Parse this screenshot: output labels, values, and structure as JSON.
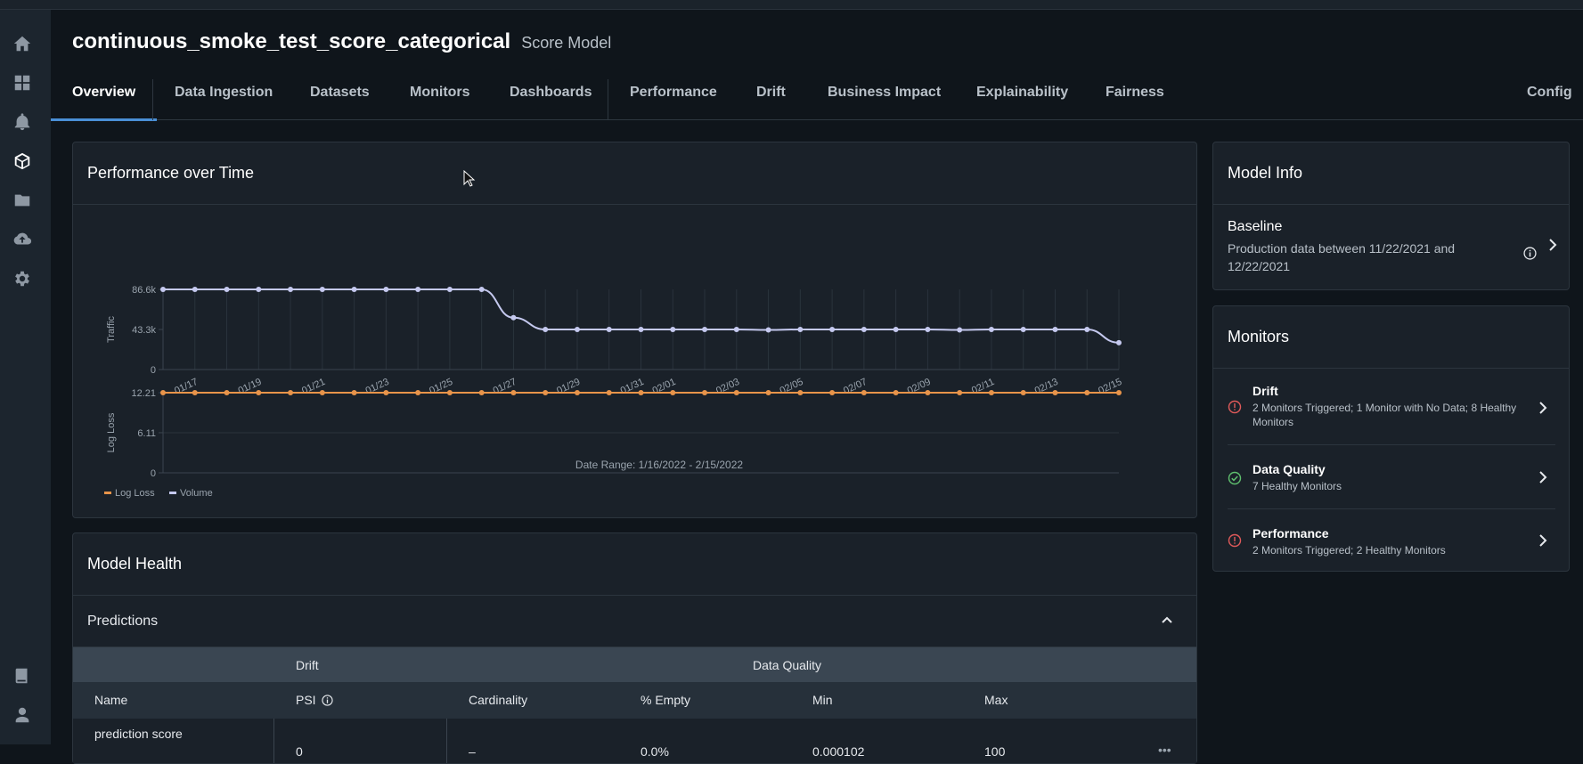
{
  "app": {
    "model_name": "continuous_smoke_test_score_categorical",
    "model_type": "Score Model"
  },
  "tabs": [
    {
      "label": "Overview",
      "active": true
    },
    {
      "label": "Data Ingestion"
    },
    {
      "label": "Datasets"
    },
    {
      "label": "Monitors"
    },
    {
      "label": "Dashboards"
    },
    {
      "label": "Performance"
    },
    {
      "label": "Drift"
    },
    {
      "label": "Business Impact"
    },
    {
      "label": "Explainability"
    },
    {
      "label": "Fairness"
    },
    {
      "label": "Config"
    }
  ],
  "sidebar": {
    "items": [
      "home-icon",
      "dashboard-grid-icon",
      "bell-icon",
      "cube-icon",
      "folder-icon",
      "cloud-upload-icon",
      "gear-icon",
      "book-icon",
      "user-icon"
    ]
  },
  "perf_panel": {
    "title": "Performance over Time",
    "date_range": "Date Range: 1/16/2022 - 2/15/2022",
    "legend": [
      {
        "label": "Log Loss",
        "color": "#e8944a"
      },
      {
        "label": "Volume",
        "color": "#c5c9ef"
      }
    ]
  },
  "chart_data": [
    {
      "type": "line",
      "ylabel": "Traffic",
      "yticks": [
        "0",
        "43.3k",
        "86.6k"
      ],
      "ylim": [
        0,
        86600
      ],
      "x_tick_labels": [
        "01/17",
        "01/19",
        "01/21",
        "01/23",
        "01/25",
        "01/27",
        "01/29",
        "01/31",
        "02/01",
        "02/03",
        "02/05",
        "02/07",
        "02/09",
        "02/11",
        "02/13",
        "02/15"
      ],
      "series": [
        {
          "color": "#c5c9ef",
          "values": [
            86600,
            86600,
            86600,
            86600,
            86600,
            86600,
            86600,
            86600,
            86600,
            86600,
            86600,
            56000,
            43300,
            43300,
            43300,
            43300,
            43300,
            43300,
            43300,
            42800,
            43300,
            43300,
            43300,
            43300,
            43300,
            42800,
            43300,
            43300,
            43300,
            43300,
            29000
          ]
        }
      ]
    },
    {
      "type": "line",
      "ylabel": "Log Loss",
      "yticks": [
        "0",
        "6.11",
        "12.21"
      ],
      "ylim": [
        0,
        12.21
      ],
      "series": [
        {
          "color": "#e8944a",
          "values": [
            12.21,
            12.21,
            12.21,
            12.21,
            12.21,
            12.21,
            12.21,
            12.21,
            12.21,
            12.21,
            12.21,
            12.21,
            12.21,
            12.21,
            12.21,
            12.21,
            12.21,
            12.21,
            12.21,
            12.21,
            12.21,
            12.21,
            12.21,
            12.21,
            12.21,
            12.21,
            12.21,
            12.21,
            12.21,
            12.21,
            12.21
          ]
        }
      ]
    }
  ],
  "health_panel": {
    "title": "Model Health",
    "section": "Predictions",
    "groups": {
      "drift": "Drift",
      "quality": "Data Quality"
    },
    "columns": [
      "Name",
      "PSI",
      "Cardinality",
      "% Empty",
      "Min",
      "Max"
    ],
    "rows": [
      {
        "name": "prediction score",
        "psi": "0",
        "cardinality": "–",
        "empty": "0.0%",
        "min": "0.000102",
        "max": "100",
        "more": "•••"
      }
    ]
  },
  "info_panel": {
    "title": "Model Info",
    "baseline_label": "Baseline",
    "baseline_desc_line1": "Production data between 11/22/2021 and",
    "baseline_desc_line2": "12/22/2021"
  },
  "monitors_panel": {
    "title": "Monitors",
    "items": [
      {
        "name": "Drift",
        "desc_line1": "2 Monitors Triggered; 1 Monitor with No Data; 8 Healthy",
        "desc_line2": "Monitors",
        "status": "error",
        "status_color": "#e05a5a"
      },
      {
        "name": "Data Quality",
        "desc_line1": "7 Healthy Monitors",
        "desc_line2": "",
        "status": "ok",
        "status_color": "#5fbf6e"
      },
      {
        "name": "Performance",
        "desc_line1": "2 Monitors Triggered; 2 Healthy Monitors",
        "desc_line2": "",
        "status": "error",
        "status_color": "#e05a5a"
      }
    ]
  }
}
